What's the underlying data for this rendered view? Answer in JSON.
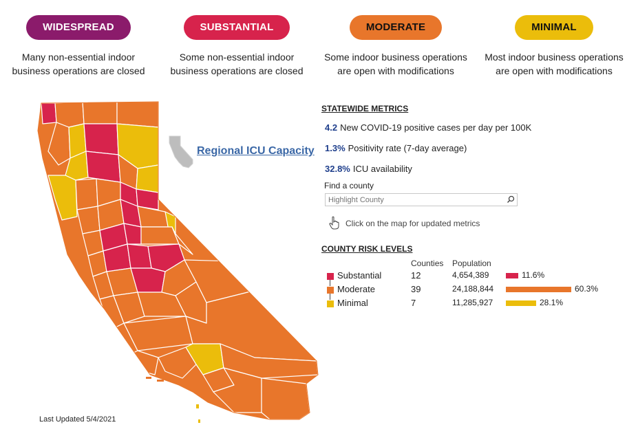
{
  "tiers": [
    {
      "label": "WIDESPREAD",
      "color": "#8b1b6b",
      "text_color": "white",
      "desc_line1": "Many non-essential indoor",
      "desc_line2": "business operations are closed"
    },
    {
      "label": "SUBSTANTIAL",
      "color": "#d7234c",
      "text_color": "white",
      "desc_line1": "Some non-essential indoor",
      "desc_line2": "business operations are closed"
    },
    {
      "label": "MODERATE",
      "color": "#e8762b",
      "text_color": "dark",
      "desc_line1": "Some indoor business operations",
      "desc_line2": "are open with modifications"
    },
    {
      "label": "MINIMAL",
      "color": "#ebbd0b",
      "text_color": "dark",
      "desc_line1": "Most indoor business operations",
      "desc_line2": "are open with modifications"
    }
  ],
  "icu_link": "Regional ICU Capacity",
  "statewide": {
    "heading": "STATEWIDE METRICS",
    "metrics": [
      {
        "value": "4.2",
        "label": "New COVID-19 positive cases per day per 100K"
      },
      {
        "value": "1.3%",
        "label": "Positivity rate (7-day average)"
      },
      {
        "value": "32.8%",
        "label": "ICU availability"
      }
    ]
  },
  "find": {
    "label": "Find a county",
    "placeholder": "Highlight County",
    "icon": "search-icon"
  },
  "click_note": "Click on the map for updated metrics",
  "county_risk": {
    "heading": "COUNTY RISK LEVELS",
    "col_counties": "Counties",
    "col_population": "Population",
    "rows": [
      {
        "name": "Substantial",
        "count": "12",
        "population": "4,654,389",
        "percent": "11.6%",
        "share": 11.6,
        "color": "#d7234c"
      },
      {
        "name": "Moderate",
        "count": "39",
        "population": "24,188,844",
        "percent": "60.3%",
        "share": 60.3,
        "color": "#e8762b"
      },
      {
        "name": "Minimal",
        "count": "7",
        "population": "11,285,927",
        "percent": "28.1%",
        "share": 28.1,
        "color": "#ebbd0b"
      }
    ]
  },
  "last_updated": "Last Updated 5/4/2021",
  "colors": {
    "substantial": "#d7234c",
    "moderate": "#e8762b",
    "minimal": "#ebbd0b",
    "link": "#3a67a6",
    "metric_value": "#1f3f8c"
  }
}
